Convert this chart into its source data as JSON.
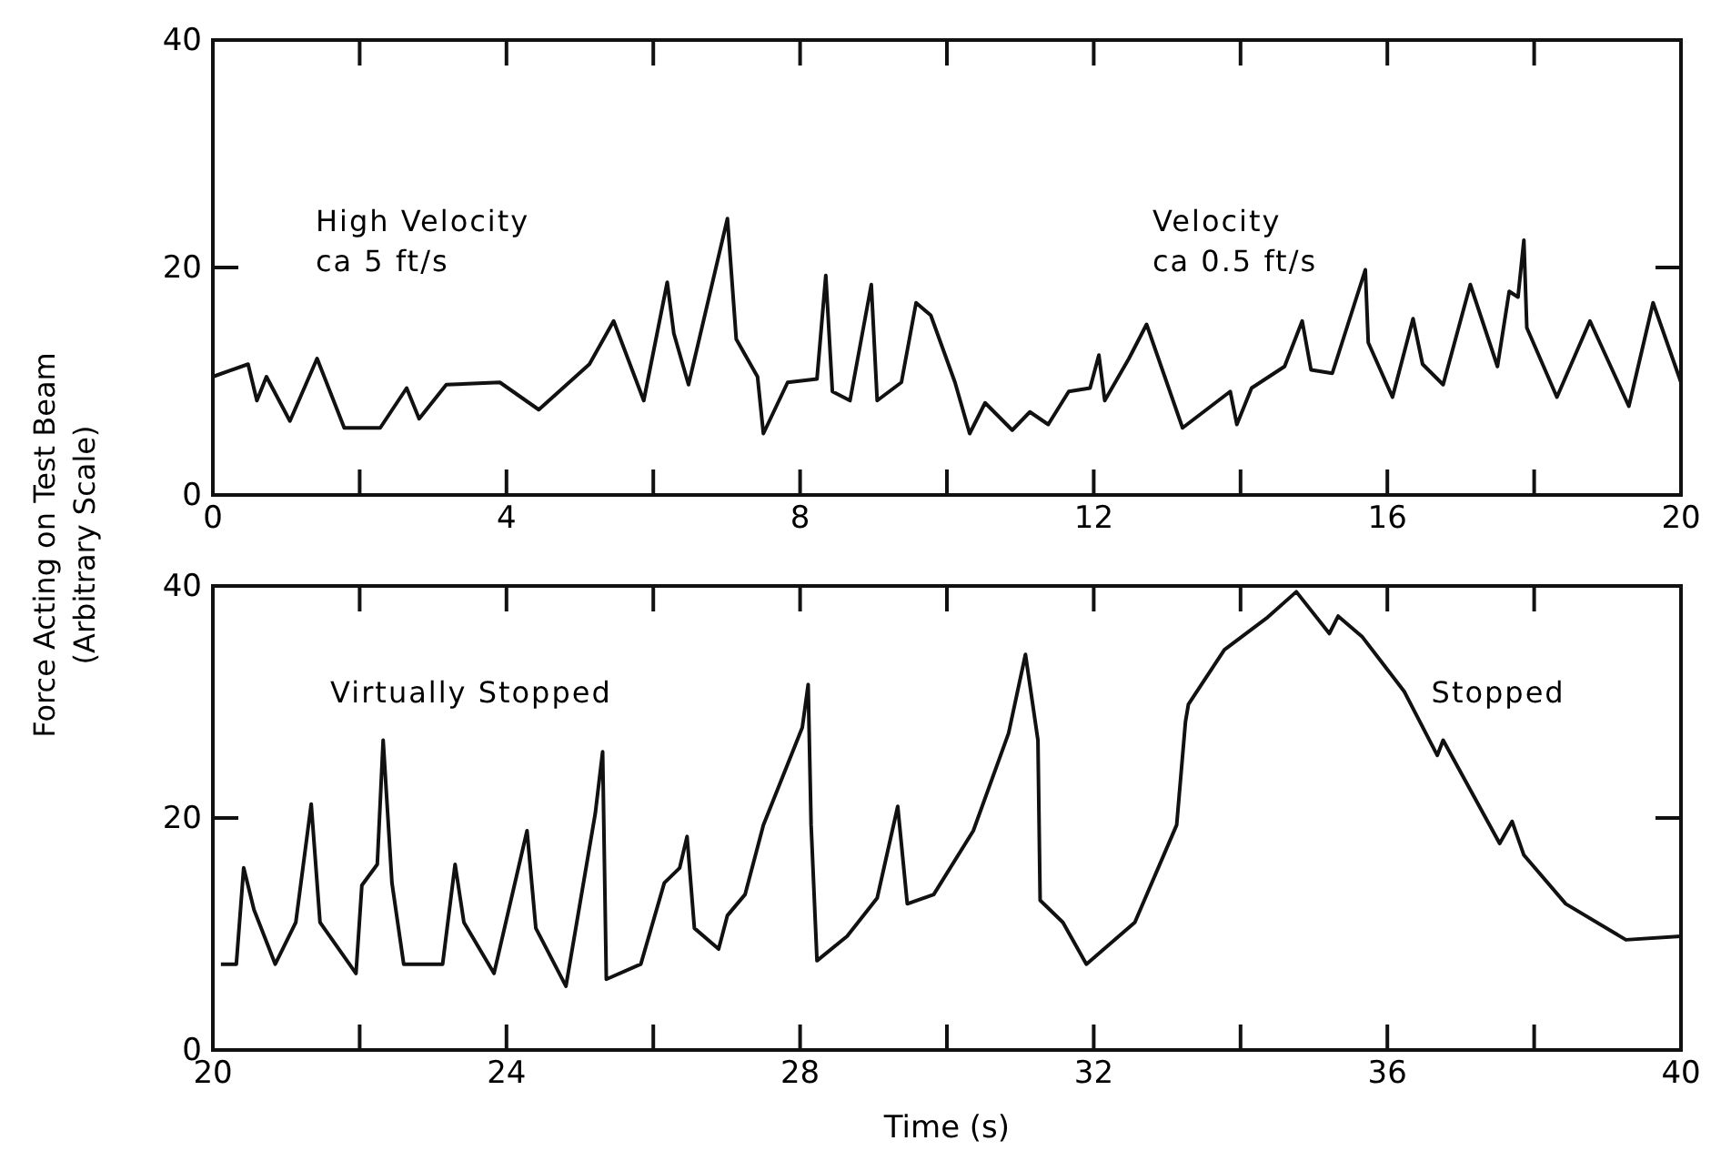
{
  "chart_data": [
    {
      "type": "line",
      "ylabel": "Force Acting on Test Beam\n(Arbitrary Scale)",
      "annotations": [
        "High Velocity\nca 5 ft/s",
        "Velocity\nca 0.5 ft/s"
      ],
      "xlim": [
        0,
        20
      ],
      "xticks": [
        0,
        {
          "value": 2,
          "label": null
        },
        4,
        {
          "value": 6,
          "label": null
        },
        8,
        {
          "value": 10,
          "label": null
        },
        12,
        {
          "value": 14,
          "label": null
        },
        16,
        {
          "value": 18,
          "label": null
        },
        20
      ],
      "ylim": [
        0,
        40
      ],
      "yticks": [
        0,
        20,
        40
      ],
      "grid": false,
      "series": [
        {
          "color": "#111111",
          "x": [
            0,
            0.48,
            0.6,
            0.73,
            1.05,
            1.42,
            1.79,
            2.28,
            2.64,
            2.81,
            3.18,
            3.91,
            4.44,
            5.13,
            5.46,
            5.87,
            6.19,
            6.28,
            6.48,
            7.01,
            7.13,
            7.42,
            7.5,
            7.83,
            8.23,
            8.35,
            8.44,
            8.68,
            8.97,
            9.05,
            9.38,
            9.58,
            9.78,
            10.11,
            10.31,
            10.52,
            10.89,
            11.13,
            11.38,
            11.66,
            11.95,
            12.07,
            12.15,
            12.48,
            12.72,
            13.21,
            13.86,
            13.95,
            14.15,
            14.6,
            14.84,
            14.96,
            15.25,
            15.7,
            15.74,
            16.07,
            16.35,
            16.48,
            16.76,
            17.13,
            17.5,
            17.66,
            17.78,
            17.86,
            17.9,
            18.31,
            18.76,
            19.29,
            19.62,
            20
          ],
          "values": [
            10.4,
            11.5,
            8.3,
            10.4,
            6.5,
            12,
            5.9,
            5.9,
            9.4,
            6.7,
            9.7,
            9.9,
            7.5,
            11.5,
            15.3,
            8.3,
            18.7,
            14.2,
            9.7,
            24.3,
            13.7,
            10.4,
            5.4,
            9.9,
            10.2,
            19.3,
            9.1,
            8.3,
            18.5,
            8.3,
            9.9,
            16.9,
            15.8,
            9.9,
            5.4,
            8.1,
            5.7,
            7.3,
            6.2,
            9.1,
            9.4,
            12.3,
            8.3,
            12,
            15,
            5.9,
            9.1,
            6.2,
            9.4,
            11.3,
            15.3,
            11,
            10.7,
            19.8,
            13.4,
            8.6,
            15.5,
            11.5,
            9.7,
            18.5,
            11.3,
            17.9,
            17.4,
            22.4,
            14.7,
            8.6,
            15.3,
            7.8,
            16.9,
            9.9
          ]
        }
      ]
    },
    {
      "type": "line",
      "xlabel": "Time (s)",
      "annotations": [
        "Virtually Stopped",
        "Stopped"
      ],
      "xlim": [
        20,
        40
      ],
      "xticks": [
        20,
        {
          "value": 22,
          "label": null
        },
        24,
        {
          "value": 26,
          "label": null
        },
        28,
        {
          "value": 30,
          "label": null
        },
        32,
        {
          "value": 34,
          "label": null
        },
        36,
        {
          "value": 38,
          "label": null
        },
        40
      ],
      "ylim": [
        0,
        40
      ],
      "yticks": [
        0,
        20,
        40
      ],
      "grid": false,
      "series": [
        {
          "color": "#111111",
          "x": [
            20.11,
            20.32,
            20.42,
            20.56,
            20.85,
            21.13,
            21.34,
            21.46,
            21.95,
            22.03,
            22.24,
            22.32,
            22.44,
            22.6,
            23.13,
            23.3,
            23.42,
            23.83,
            24.28,
            24.4,
            24.81,
            25.21,
            25.31,
            25.36,
            25.83,
            26.15,
            26.36,
            26.46,
            26.56,
            26.89,
            27.01,
            27.25,
            27.5,
            28.03,
            28.11,
            28.15,
            28.23,
            28.64,
            29.05,
            29.33,
            29.46,
            29.82,
            30.36,
            30.84,
            31.07,
            31.24,
            31.27,
            31.58,
            31.9,
            32.56,
            33.13,
            33.25,
            33.29,
            33.78,
            34.35,
            34.76,
            35.21,
            35.33,
            35.66,
            36.23,
            36.68,
            36.76,
            37.53,
            37.7,
            37.86,
            38.43,
            39.25,
            40
          ],
          "values": [
            7.4,
            7.4,
            15.7,
            12.1,
            7.4,
            11,
            21.2,
            11,
            6.6,
            14.2,
            16,
            26.7,
            14.4,
            7.4,
            7.4,
            16,
            11,
            6.6,
            18.9,
            10.5,
            5.5,
            20.4,
            25.7,
            6.1,
            7.4,
            14.4,
            15.7,
            18.4,
            10.5,
            8.7,
            11.6,
            13.4,
            19.4,
            27.8,
            31.5,
            19.4,
            7.7,
            9.8,
            13.1,
            21,
            12.6,
            13.4,
            18.9,
            27.3,
            34.1,
            26.7,
            12.9,
            11,
            7.4,
            11,
            19.4,
            28.3,
            29.8,
            34.5,
            37.2,
            39.5,
            35.9,
            37.4,
            35.6,
            30.9,
            25.4,
            26.7,
            17.8,
            19.7,
            16.8,
            12.6,
            9.5,
            9.8
          ]
        }
      ]
    }
  ]
}
